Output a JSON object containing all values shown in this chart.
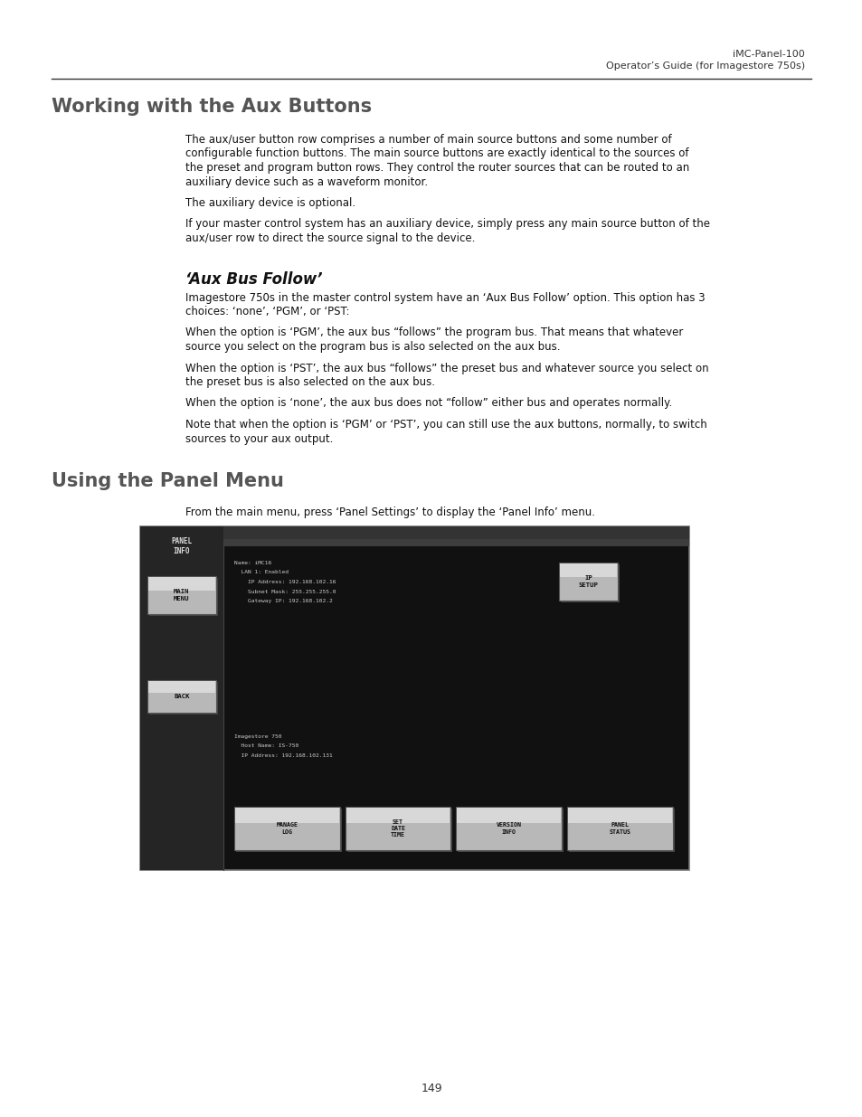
{
  "page_bg": "#ffffff",
  "header_text1": "iMC-Panel-100",
  "header_text2": "Operator’s Guide (for Imagestore 750s)",
  "section1_title": "Working with the Aux Buttons",
  "section2_title": "‘Aux Bus Follow’",
  "section3_title": "Using the Panel Menu",
  "section1_para1": "The aux/user button row comprises a number of main source buttons and some number of\nconfigurable function buttons. The main source buttons are exactly identical to the sources of\nthe preset and program button rows. They control the router sources that can be routed to an\nauxiliary device such as a waveform monitor.",
  "section1_para2": "The auxiliary device is optional.",
  "section1_para3": "If your master control system has an auxiliary device, simply press any main source button of the\naux/user row to direct the source signal to the device.",
  "section2_para1": "Imagestore 750s in the master control system have an ‘Aux Bus Follow’ option. This option has 3\nchoices: ‘none’, ‘PGM’, or ‘PST:",
  "section2_para2": "When the option is ‘PGM’, the aux bus “follows” the program bus. That means that whatever\nsource you select on the program bus is also selected on the aux bus.",
  "section2_para3": "When the option is ‘PST’, the aux bus “follows” the preset bus and whatever source you select on\nthe preset bus is also selected on the aux bus.",
  "section2_para4": "When the option is ‘none’, the aux bus does not “follow” either bus and operates normally.",
  "section2_para5": "Note that when the option is ‘PGM’ or ‘PST’, you can still use the aux buttons, normally, to switch\nsources to your aux output.",
  "section3_para1": "From the main menu, press ‘Panel Settings’ to display the ‘Panel Info’ menu.",
  "page_number": "149",
  "panel_bg": "#111111",
  "panel_sidebar_bg": "#252525",
  "info_text1": "Name: iMC16\n  LAN 1: Enabled\n    IP Address: 192.168.102.16\n    Subnet Mask: 255.255.255.0\n    Gateway IP: 192.168.102.2",
  "info_text2": "Imagestore 750\n  Host Name: IS-750\n  IP Address: 192.168.102.131",
  "btn_labels_bottom": [
    "MANAGE\nLOG",
    "SET\nDATE\nTIME",
    "VERSION\nINFO",
    "PANEL\nSTATUS"
  ],
  "btn_sidebar1": "MAIN\nMENU",
  "btn_sidebar2": "BACK",
  "btn_ip": "IP\nSETUP",
  "panel_header_label": "PANEL\nINFO"
}
